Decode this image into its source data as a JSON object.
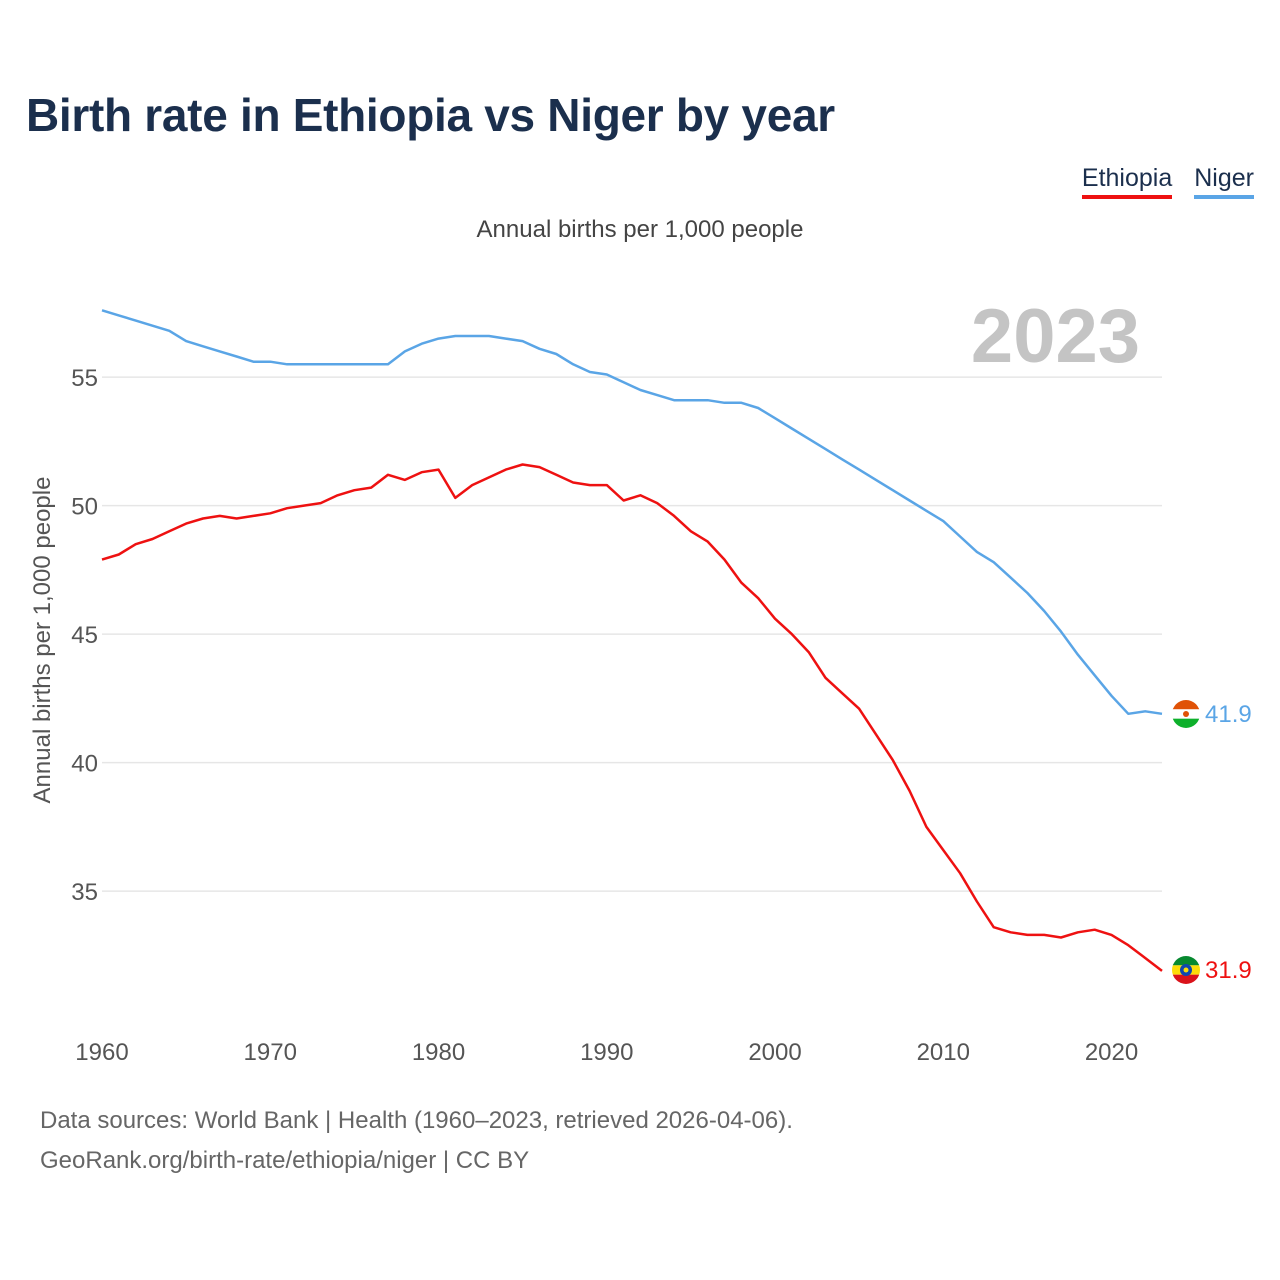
{
  "header": {
    "title": "Birth rate in Ethiopia vs Niger by year",
    "subtitle": "Annual births per 1,000 people"
  },
  "legend": {
    "items": [
      {
        "label": "Ethiopia",
        "color": "#ee1111"
      },
      {
        "label": "Niger",
        "color": "#5aa5e6"
      }
    ]
  },
  "chart_data": {
    "type": "line",
    "title": "Birth rate in Ethiopia vs Niger by year",
    "subtitle": "Annual births per 1,000 people",
    "xlabel": "",
    "ylabel": "Annual births per 1,000 people",
    "year_label": "2023",
    "xlim": [
      1960,
      2023
    ],
    "ylim": [
      31,
      58
    ],
    "x_ticks": [
      1960,
      1970,
      1980,
      1990,
      2000,
      2010,
      2020
    ],
    "y_ticks": [
      35,
      40,
      45,
      50,
      55
    ],
    "x": [
      1960,
      1961,
      1962,
      1963,
      1964,
      1965,
      1966,
      1967,
      1968,
      1969,
      1970,
      1971,
      1972,
      1973,
      1974,
      1975,
      1976,
      1977,
      1978,
      1979,
      1980,
      1981,
      1982,
      1983,
      1984,
      1985,
      1986,
      1987,
      1988,
      1989,
      1990,
      1991,
      1992,
      1993,
      1994,
      1995,
      1996,
      1997,
      1998,
      1999,
      2000,
      2001,
      2002,
      2003,
      2004,
      2005,
      2006,
      2007,
      2008,
      2009,
      2010,
      2011,
      2012,
      2013,
      2014,
      2015,
      2016,
      2017,
      2018,
      2019,
      2020,
      2021,
      2022,
      2023
    ],
    "series": [
      {
        "name": "Ethiopia",
        "color": "#ee1111",
        "end_label": "31.9",
        "values": [
          47.9,
          48.1,
          48.5,
          48.7,
          49.0,
          49.3,
          49.5,
          49.6,
          49.5,
          49.6,
          49.7,
          49.9,
          50.0,
          50.1,
          50.4,
          50.6,
          50.7,
          51.2,
          51.0,
          51.3,
          51.4,
          50.3,
          50.8,
          51.1,
          51.4,
          51.6,
          51.5,
          51.2,
          50.9,
          50.8,
          50.8,
          50.2,
          50.4,
          50.1,
          49.6,
          49.0,
          48.6,
          47.9,
          47.0,
          46.4,
          45.6,
          45.0,
          44.3,
          43.3,
          42.7,
          42.1,
          41.1,
          40.1,
          38.9,
          37.5,
          36.6,
          35.7,
          34.6,
          33.6,
          33.4,
          33.3,
          33.3,
          33.2,
          33.4,
          33.5,
          33.3,
          32.9,
          32.4,
          31.9
        ]
      },
      {
        "name": "Niger",
        "color": "#5aa5e6",
        "end_label": "41.9",
        "values": [
          57.6,
          57.4,
          57.2,
          57.0,
          56.8,
          56.4,
          56.2,
          56.0,
          55.8,
          55.6,
          55.6,
          55.5,
          55.5,
          55.5,
          55.5,
          55.5,
          55.5,
          55.5,
          56.0,
          56.3,
          56.5,
          56.6,
          56.6,
          56.6,
          56.5,
          56.4,
          56.1,
          55.9,
          55.5,
          55.2,
          55.1,
          54.8,
          54.5,
          54.3,
          54.1,
          54.1,
          54.1,
          54.0,
          54.0,
          53.8,
          53.4,
          53.0,
          52.6,
          52.2,
          51.8,
          51.4,
          51.0,
          50.6,
          50.2,
          49.8,
          49.4,
          48.8,
          48.2,
          47.8,
          47.2,
          46.6,
          45.9,
          45.1,
          44.2,
          43.4,
          42.6,
          41.9,
          42.0,
          41.9
        ]
      }
    ]
  },
  "footer": {
    "line1": "Data sources: World Bank | Health (1960–2023, retrieved 2026-04-06).",
    "line2": "GeoRank.org/birth-rate/ethiopia/niger | CC BY"
  }
}
